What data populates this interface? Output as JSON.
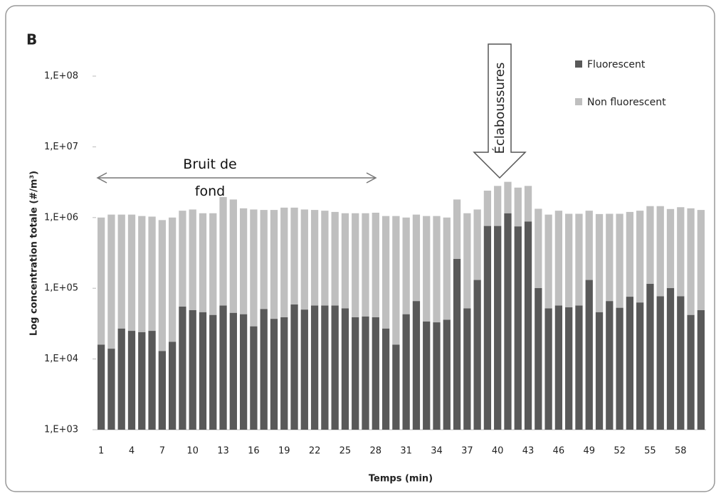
{
  "chart_data": {
    "type": "stacked-bar",
    "title": "B",
    "x_label": "Temps (min)",
    "y_label": "Log concentration totale (#/m³)",
    "log_scale": true,
    "legend_position": "top-right",
    "annotations": [
      "Bruit de fond",
      "Éclaboussures"
    ],
    "categories": [
      1,
      null,
      null,
      4,
      null,
      null,
      7,
      null,
      null,
      10,
      null,
      null,
      13,
      null,
      null,
      16,
      null,
      null,
      19,
      null,
      null,
      22,
      null,
      null,
      25,
      null,
      null,
      28,
      null,
      null,
      31,
      null,
      null,
      34,
      null,
      null,
      37,
      null,
      null,
      40,
      null,
      null,
      43,
      null,
      null,
      46,
      null,
      null,
      49,
      null,
      null,
      52,
      null,
      null,
      55,
      null,
      null,
      58,
      null,
      null
    ],
    "series": [
      {
        "name": "Fluorescent",
        "color": "#595959",
        "values": [
          15000,
          13000,
          26000,
          24000,
          23000,
          24000,
          12000,
          16500,
          54000,
          48000,
          45000,
          41000,
          56000,
          44000,
          42000,
          28000,
          50000,
          36000,
          38000,
          58000,
          49000,
          56000,
          56000,
          56000,
          51000,
          38000,
          39000,
          38000,
          26000,
          15000,
          42000,
          65000,
          33000,
          32000,
          35000,
          260000,
          51000,
          130000,
          760000,
          760000,
          1150000,
          750000,
          880000,
          100000,
          51000,
          56000,
          53000,
          56000,
          130000,
          45000,
          65000,
          52000,
          75000,
          62000,
          115000,
          76000,
          100000,
          76000,
          41000,
          48000
        ]
      },
      {
        "name": "Non fluorescent",
        "color": "#bfbfbf",
        "values": [
          985000,
          1087000,
          1074000,
          1076000,
          1027000,
          1006000,
          908000,
          983500,
          1196000,
          1252000,
          1105000,
          1109000,
          1894000,
          1756000,
          1308000,
          1272000,
          1230000,
          1244000,
          1342000,
          1322000,
          1251000,
          1224000,
          1194000,
          1144000,
          1099000,
          1112000,
          1111000,
          1132000,
          1024000,
          1035000,
          958000,
          1035000,
          1017000,
          1018000,
          965000,
          1540000,
          1099000,
          1170000,
          1640000,
          2040000,
          2050000,
          1900000,
          1920000,
          1230000,
          1049000,
          1194000,
          1077000,
          1074000,
          1120000,
          1075000,
          1065000,
          1078000,
          1125000,
          1188000,
          1335000,
          1374000,
          1220000,
          1324000,
          1309000,
          1232000
        ]
      }
    ],
    "ylim": [
      1000,
      100000000
    ],
    "yticks": [
      {
        "value": 1000,
        "label": "1,E+03"
      },
      {
        "value": 10000,
        "label": "1,E+04"
      },
      {
        "value": 100000,
        "label": "1,E+05"
      },
      {
        "value": 1000000,
        "label": "1,E+06"
      },
      {
        "value": 10000000,
        "label": "1,E+07"
      },
      {
        "value": 100000000,
        "label": "1,E+08"
      }
    ]
  }
}
